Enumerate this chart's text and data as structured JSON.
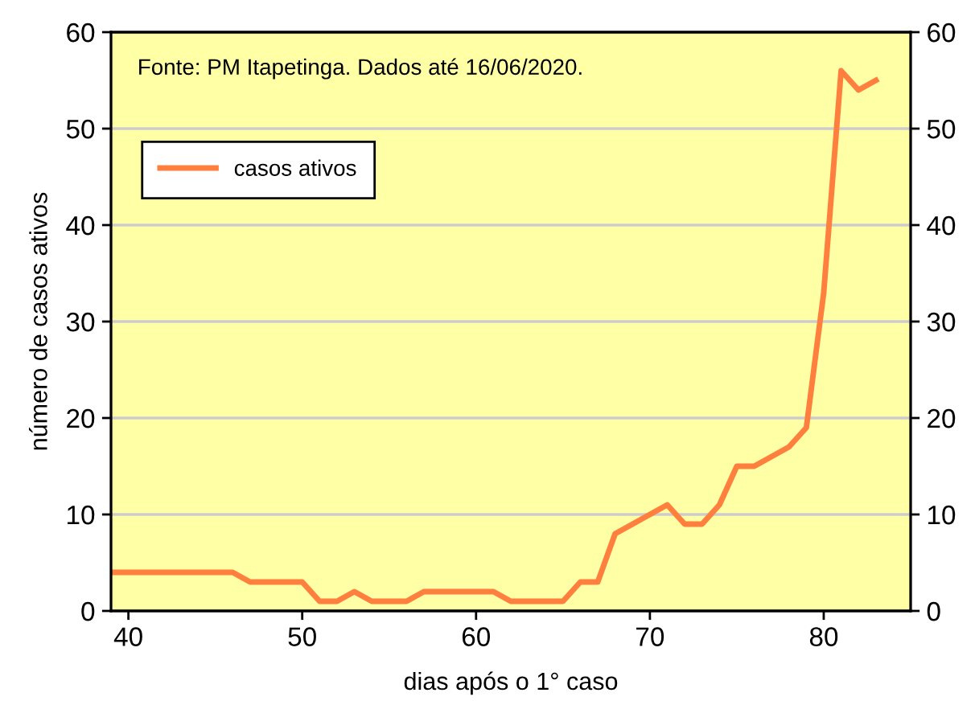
{
  "chart_data": {
    "type": "line",
    "xlabel": "dias após o 1° caso",
    "ylabel": "número de casos ativos",
    "annotations": [
      "Fonte: PM Itapetinga. Dados até 16/06/2020."
    ],
    "x": [
      39,
      40,
      41,
      42,
      43,
      44,
      45,
      46,
      47,
      48,
      49,
      50,
      51,
      52,
      53,
      54,
      55,
      56,
      57,
      58,
      59,
      60,
      61,
      62,
      63,
      64,
      65,
      66,
      67,
      68,
      69,
      70,
      71,
      72,
      73,
      74,
      75,
      76,
      77,
      78,
      79,
      80,
      81,
      82,
      83
    ],
    "series": [
      {
        "name": "casos ativos",
        "color": "#ff7f3f",
        "values": [
          4,
          4,
          4,
          4,
          4,
          4,
          4,
          4,
          3,
          3,
          3,
          3,
          1,
          1,
          2,
          1,
          1,
          1,
          2,
          2,
          2,
          2,
          2,
          1,
          1,
          1,
          1,
          3,
          3,
          8,
          9,
          10,
          11,
          9,
          9,
          11,
          15,
          15,
          16,
          17,
          19,
          33,
          56,
          54,
          55
        ]
      }
    ],
    "xlim": [
      39,
      85
    ],
    "xticks": [
      40,
      50,
      60,
      70,
      80
    ],
    "ylim": [
      0,
      60
    ],
    "yticks": [
      0,
      10,
      20,
      30,
      40,
      50,
      60
    ],
    "y2lim": [
      0,
      60
    ],
    "y2ticks": [
      0,
      10,
      20,
      30,
      40,
      50,
      60
    ],
    "grid": "y",
    "legend": "top left"
  }
}
